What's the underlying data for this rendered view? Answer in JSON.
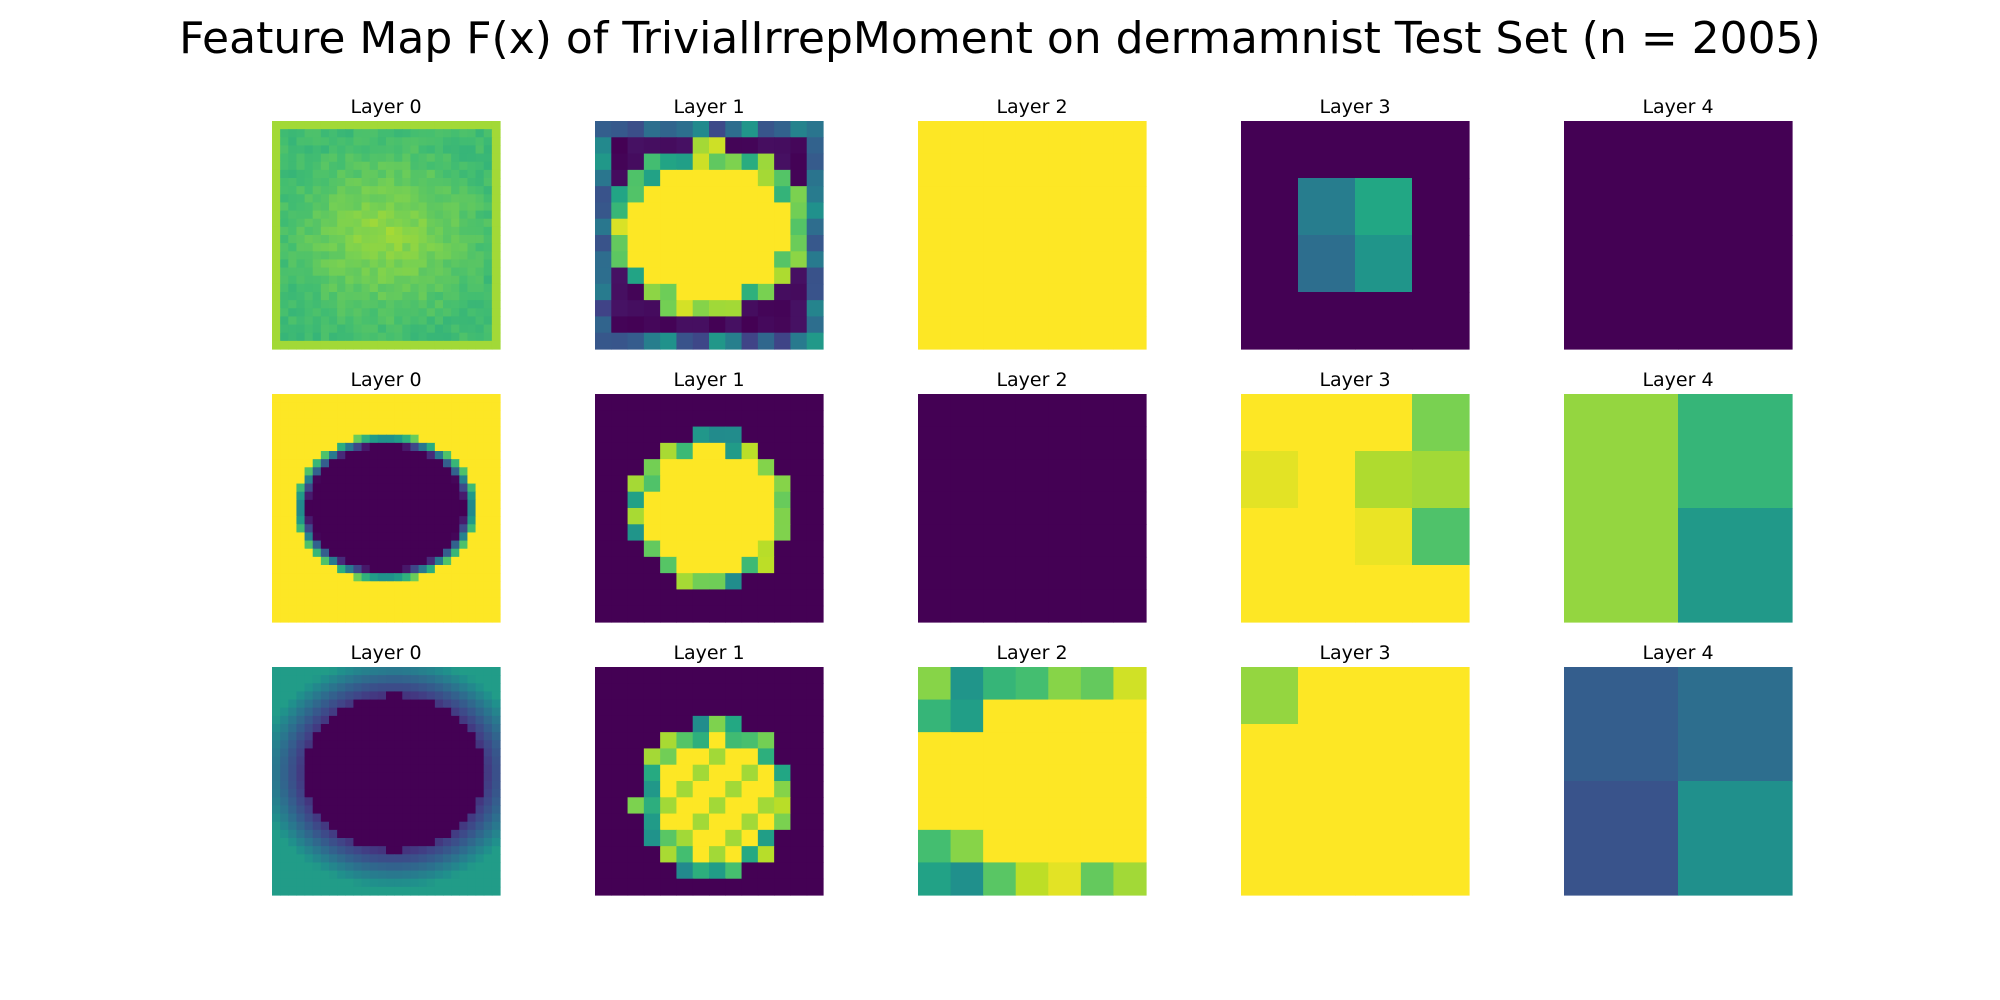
{
  "title": "Feature Map F(x) of TrivialIrrepMoment on dermamnist Test Set (n = 2005)",
  "chart_data": {
    "type": "heatmap",
    "colormap": "viridis",
    "rows": 3,
    "cols": 5,
    "panels": [
      [
        {
          "label": "Layer 0",
          "size": 28,
          "pattern": "noise-high"
        },
        {
          "label": "Layer 1",
          "size": 14,
          "pattern": "blob-ring-noisy"
        },
        {
          "label": "Layer 2",
          "size": 7,
          "grid": [
            [
              1,
              1,
              1,
              1,
              1,
              1,
              1
            ],
            [
              1,
              1,
              1,
              1,
              1,
              1,
              1
            ],
            [
              1,
              1,
              1,
              1,
              1,
              1,
              1
            ],
            [
              1,
              1,
              1,
              1,
              1,
              1,
              1
            ],
            [
              1,
              1,
              1,
              1,
              1,
              1,
              1
            ],
            [
              1,
              1,
              1,
              1,
              1,
              1,
              1
            ],
            [
              1,
              1,
              1,
              1,
              1,
              1,
              1
            ]
          ]
        },
        {
          "label": "Layer 3",
          "size": 4,
          "grid": [
            [
              0,
              0,
              0,
              0
            ],
            [
              0,
              0.42,
              0.6,
              0
            ],
            [
              0,
              0.36,
              0.52,
              0
            ],
            [
              0,
              0,
              0,
              0
            ]
          ]
        },
        {
          "label": "Layer 4",
          "size": 2,
          "grid": [
            [
              0,
              0
            ],
            [
              0,
              0
            ]
          ]
        }
      ],
      [
        {
          "label": "Layer 0",
          "size": 28,
          "pattern": "hole"
        },
        {
          "label": "Layer 1",
          "size": 14,
          "pattern": "blob"
        },
        {
          "label": "Layer 2",
          "size": 7,
          "grid": [
            [
              0,
              0,
              0,
              0,
              0,
              0,
              0
            ],
            [
              0,
              0,
              0,
              0,
              0,
              0,
              0
            ],
            [
              0,
              0,
              0,
              0,
              0,
              0,
              0
            ],
            [
              0,
              0,
              0,
              0,
              0,
              0,
              0
            ],
            [
              0,
              0,
              0,
              0,
              0,
              0,
              0
            ],
            [
              0,
              0,
              0,
              0,
              0,
              0,
              0
            ],
            [
              0,
              0,
              0,
              0,
              0,
              0,
              0
            ]
          ]
        },
        {
          "label": "Layer 3",
          "size": 4,
          "grid": [
            [
              1,
              1,
              1,
              0.8
            ],
            [
              0.96,
              1,
              0.88,
              0.86
            ],
            [
              1,
              1,
              0.97,
              0.72
            ],
            [
              1,
              1,
              1,
              1
            ]
          ]
        },
        {
          "label": "Layer 4",
          "size": 2,
          "grid": [
            [
              0.84,
              0.66
            ],
            [
              0.84,
              0.54
            ]
          ]
        }
      ],
      [
        {
          "label": "Layer 0",
          "size": 28,
          "pattern": "dark-center"
        },
        {
          "label": "Layer 1",
          "size": 14,
          "pattern": "blob-checker"
        },
        {
          "label": "Layer 2",
          "size": 7,
          "grid": [
            [
              0.82,
              0.52,
              0.66,
              0.7,
              0.82,
              0.76,
              0.93
            ],
            [
              0.66,
              0.56,
              1,
              1,
              1,
              1,
              1
            ],
            [
              1,
              1,
              1,
              1,
              1,
              1,
              1
            ],
            [
              1,
              1,
              1,
              1,
              1,
              1,
              1
            ],
            [
              1,
              1,
              1,
              1,
              1,
              1,
              1
            ],
            [
              0.7,
              0.82,
              1,
              1,
              1,
              1,
              1
            ],
            [
              0.58,
              0.5,
              0.74,
              0.9,
              0.96,
              0.76,
              0.86
            ]
          ]
        },
        {
          "label": "Layer 3",
          "size": 4,
          "grid": [
            [
              0.84,
              1,
              1,
              1
            ],
            [
              1,
              1,
              1,
              1
            ],
            [
              1,
              1,
              1,
              1
            ],
            [
              1,
              1,
              1,
              1
            ]
          ]
        },
        {
          "label": "Layer 4",
          "size": 2,
          "grid": [
            [
              0.3,
              0.36
            ],
            [
              0.26,
              0.5
            ]
          ]
        }
      ]
    ]
  }
}
